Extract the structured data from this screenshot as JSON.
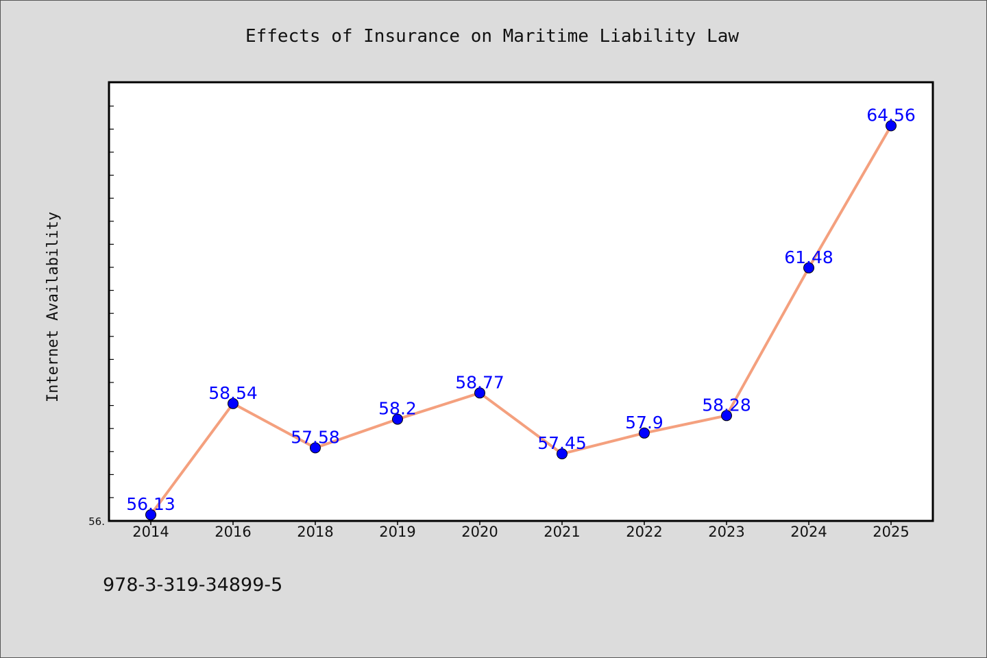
{
  "chart_data": {
    "type": "line",
    "title": "Effects of Insurance on Maritime Liability Law",
    "xlabel": "",
    "ylabel": "Internet Availability",
    "categories": [
      "2014",
      "2016",
      "2018",
      "2019",
      "2020",
      "2021",
      "2022",
      "2023",
      "2024",
      "2025"
    ],
    "series": [
      {
        "values": [
          56.13,
          58.54,
          57.58,
          58.2,
          58.77,
          57.45,
          57.9,
          58.28,
          61.48,
          64.56
        ],
        "labels": [
          "56.13",
          "58.54",
          "57.58",
          "58.2",
          "58.77",
          "57.45",
          "57.9",
          "58.28",
          "61.48",
          "64.56"
        ]
      }
    ],
    "ylim": [
      56.0,
      65.5
    ],
    "ytick_labels": [
      "56."
    ],
    "line_color": "#f4a07e",
    "marker_color": "#0000ff",
    "label_color": "#0000ff",
    "grid": false,
    "legend": "none"
  },
  "footnote": "978-3-319-34899-5"
}
